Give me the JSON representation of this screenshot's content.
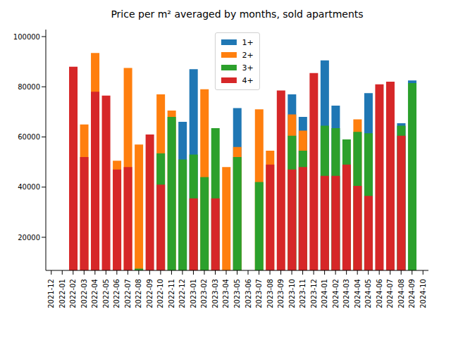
{
  "chart_data": {
    "type": "bar",
    "title": "Price per m² averaged by months, sold apartments",
    "categories": [
      "2021-12",
      "2022-01",
      "2022-02",
      "2022-03",
      "2022-04",
      "2022-05",
      "2022-06",
      "2022-07",
      "2022-08",
      "2022-09",
      "2022-10",
      "2022-11",
      "2022-12",
      "2023-01",
      "2023-02",
      "2023-03",
      "2023-04",
      "2023-05",
      "2023-06",
      "2023-07",
      "2023-08",
      "2023-09",
      "2023-10",
      "2023-11",
      "2023-12",
      "2024-01",
      "2024-02",
      "2024-03",
      "2024-04",
      "2024-05",
      "2024-06",
      "2024-07",
      "2024-08",
      "2024-09",
      "2024-10"
    ],
    "series": [
      {
        "name": "1+",
        "color": "#1f77b4",
        "values": [
          null,
          null,
          null,
          null,
          null,
          null,
          null,
          null,
          null,
          null,
          null,
          null,
          66000,
          87000,
          null,
          null,
          null,
          71500,
          null,
          null,
          null,
          null,
          77000,
          68000,
          null,
          90500,
          72500,
          null,
          null,
          77500,
          null,
          null,
          65500,
          82500,
          null
        ]
      },
      {
        "name": "2+",
        "color": "#ff7f0e",
        "values": [
          null,
          null,
          null,
          65000,
          93500,
          null,
          50500,
          87500,
          57000,
          null,
          77000,
          70500,
          null,
          null,
          79000,
          null,
          48000,
          56000,
          null,
          71000,
          54500,
          null,
          69000,
          62500,
          null,
          null,
          null,
          null,
          67000,
          null,
          null,
          null,
          null,
          null,
          null
        ]
      },
      {
        "name": "3+",
        "color": "#2ca02c",
        "values": [
          null,
          null,
          null,
          null,
          null,
          null,
          null,
          null,
          7500,
          null,
          53500,
          68000,
          51000,
          53000,
          44000,
          63500,
          null,
          52000,
          null,
          42000,
          null,
          null,
          60500,
          54500,
          null,
          64500,
          63500,
          59000,
          62000,
          61500,
          null,
          null,
          64500,
          81500,
          null
        ]
      },
      {
        "name": "4+",
        "color": "#d62728",
        "values": [
          null,
          null,
          88000,
          52000,
          78000,
          76500,
          47000,
          48000,
          null,
          61000,
          41000,
          null,
          null,
          35500,
          null,
          35500,
          null,
          null,
          null,
          null,
          49000,
          78500,
          47000,
          48000,
          85500,
          44500,
          44500,
          49000,
          40500,
          36500,
          81000,
          82000,
          60500,
          null,
          null
        ]
      }
    ],
    "ylim": [
      6800,
      102800
    ],
    "yticks": [
      20000,
      40000,
      60000,
      80000,
      100000
    ],
    "grid": false,
    "legend": "upper center"
  }
}
